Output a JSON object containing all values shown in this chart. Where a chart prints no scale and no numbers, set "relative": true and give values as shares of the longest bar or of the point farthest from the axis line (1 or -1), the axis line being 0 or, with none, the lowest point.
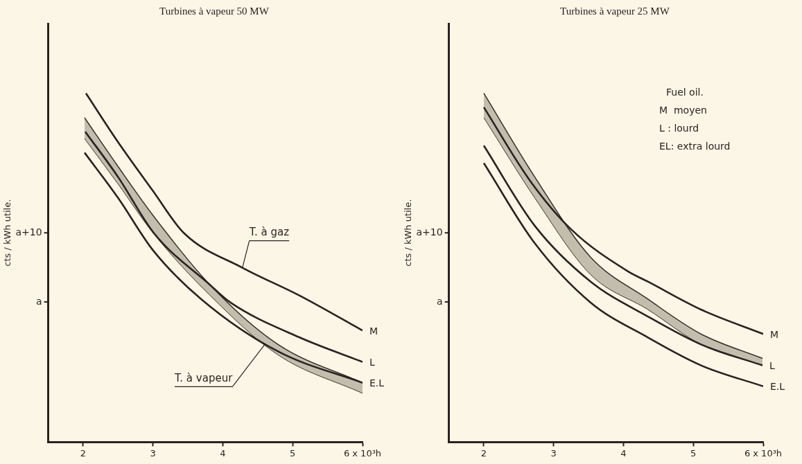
{
  "chart_data": [
    {
      "type": "line",
      "title": "Turbines à vapeur 50 MW",
      "ylabel": "cts / kWh utile.",
      "relative": true,
      "xlim": [
        1.5,
        6
      ],
      "xticks": [
        2,
        3,
        4,
        5,
        {
          "value": 6,
          "label": "6 x 10³h"
        }
      ],
      "grid": false,
      "legend": false,
      "marker": "none",
      "line_style": "solid",
      "series": [
        {
          "name": "M",
          "color": "#2a2220",
          "x": [
            2.04,
            2.5,
            3.0,
            3.44,
            4.28,
            5.1,
            6.0
          ],
          "values": [
            1.0,
            0.86,
            0.72,
            0.6,
            0.5,
            0.42,
            0.32
          ]
        },
        {
          "name": "L",
          "color": "#2a2220",
          "x": [
            2.03,
            2.5,
            3.01,
            3.82,
            4.11,
            5.1,
            6.0
          ],
          "values": [
            0.89,
            0.76,
            0.6,
            0.45,
            0.4,
            0.3,
            0.23
          ]
        },
        {
          "name": "E.L",
          "color": "#2a2220",
          "x": [
            2.02,
            2.5,
            3.0,
            3.69,
            4.79,
            6.0
          ],
          "values": [
            0.83,
            0.7,
            0.55,
            0.41,
            0.26,
            0.17
          ]
        },
        {
          "color": "#3a322c",
          "x": [
            2.02,
            2.5,
            3.0,
            3.82,
            4.79,
            6.0
          ],
          "values": [
            0.93,
            0.79,
            0.65,
            0.45,
            0.28,
            0.17
          ],
          "lower": [
            0.87,
            0.74,
            0.6,
            0.42,
            0.25,
            0.14
          ],
          "upper": [
            0.93,
            0.79,
            0.65,
            0.45,
            0.28,
            0.17
          ]
        }
      ],
      "annotations": [
        "a",
        "a+10",
        {
          "text": "T. à gaz",
          "x": 4.28,
          "y": 0.5
        },
        {
          "text": "T. à vapeur",
          "x": 4.6,
          "y": 0.28
        }
      ]
    },
    {
      "type": "line",
      "title": "Turbines à vapeur 25 MW",
      "ylabel": "cts / kWh utile.",
      "relative": true,
      "xlim": [
        1.5,
        6
      ],
      "xticks": [
        2,
        3,
        4,
        5,
        {
          "value": 6,
          "label": "6 x 10³h"
        }
      ],
      "grid": false,
      "legend": false,
      "marker": "none",
      "line_style": "solid",
      "series": [
        {
          "name": "M",
          "color": "#2a2220",
          "x": [
            2.0,
            2.66,
            3.25,
            4.06,
            4.35,
            5.11,
            6.0
          ],
          "values": [
            0.96,
            0.75,
            0.61,
            0.49,
            0.46,
            0.38,
            0.31
          ]
        },
        {
          "name": "L",
          "color": "#2a2220",
          "x": [
            2.0,
            2.73,
            3.53,
            4.35,
            5.11,
            5.99
          ],
          "values": [
            0.85,
            0.62,
            0.46,
            0.36,
            0.28,
            0.22
          ]
        },
        {
          "name": "E.L",
          "color": "#2a2220",
          "x": [
            2.0,
            2.73,
            3.53,
            4.35,
            5.11,
            6.0
          ],
          "values": [
            0.8,
            0.57,
            0.4,
            0.3,
            0.22,
            0.16
          ]
        },
        {
          "color": "#3a322c",
          "x": [
            2.0,
            2.73,
            3.53,
            4.35,
            5.11,
            5.99
          ],
          "values": [
            1.0,
            0.76,
            0.53,
            0.41,
            0.31,
            0.24
          ],
          "lower": [
            0.93,
            0.7,
            0.48,
            0.38,
            0.28,
            0.22
          ],
          "upper": [
            1.0,
            0.76,
            0.53,
            0.41,
            0.31,
            0.24
          ]
        }
      ],
      "annotations": [
        "a",
        "a+10",
        "Fuel oil.",
        "M  moyen",
        "L : lourd",
        "EL: extra lourd"
      ]
    }
  ]
}
